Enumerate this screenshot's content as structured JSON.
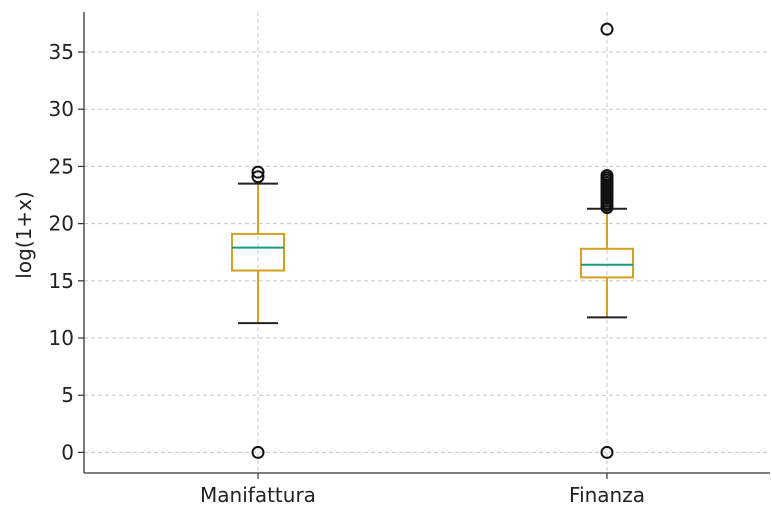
{
  "chart_data": {
    "type": "box",
    "title": "",
    "xlabel": "",
    "ylabel": "log(1+x)",
    "ylim": [
      -1.8,
      38.5
    ],
    "yticks": [
      0,
      5,
      10,
      15,
      20,
      25,
      30,
      35
    ],
    "grid": true,
    "categories": [
      "Manifattura",
      "Finanza"
    ],
    "boxes": [
      {
        "category": "Manifattura",
        "whisker_low": 11.3,
        "q1": 15.9,
        "median": 17.9,
        "q3": 19.1,
        "whisker_high": 23.5,
        "outliers": [
          0.0,
          24.1,
          24.5
        ]
      },
      {
        "category": "Finanza",
        "whisker_low": 11.8,
        "q1": 15.3,
        "median": 16.4,
        "q3": 17.8,
        "whisker_high": 21.3,
        "outliers": [
          0.0,
          21.4,
          21.6,
          21.8,
          22.0,
          22.2,
          22.4,
          22.6,
          22.8,
          23.0,
          23.2,
          23.4,
          23.6,
          23.8,
          24.0,
          24.2,
          37.0
        ]
      }
    ],
    "colors": {
      "box": "#d4a021",
      "median": "#1a9a86",
      "whisker_cap": "#222222",
      "outlier": "#111111",
      "grid": "#c8c8c8",
      "axis": "#333333"
    }
  }
}
